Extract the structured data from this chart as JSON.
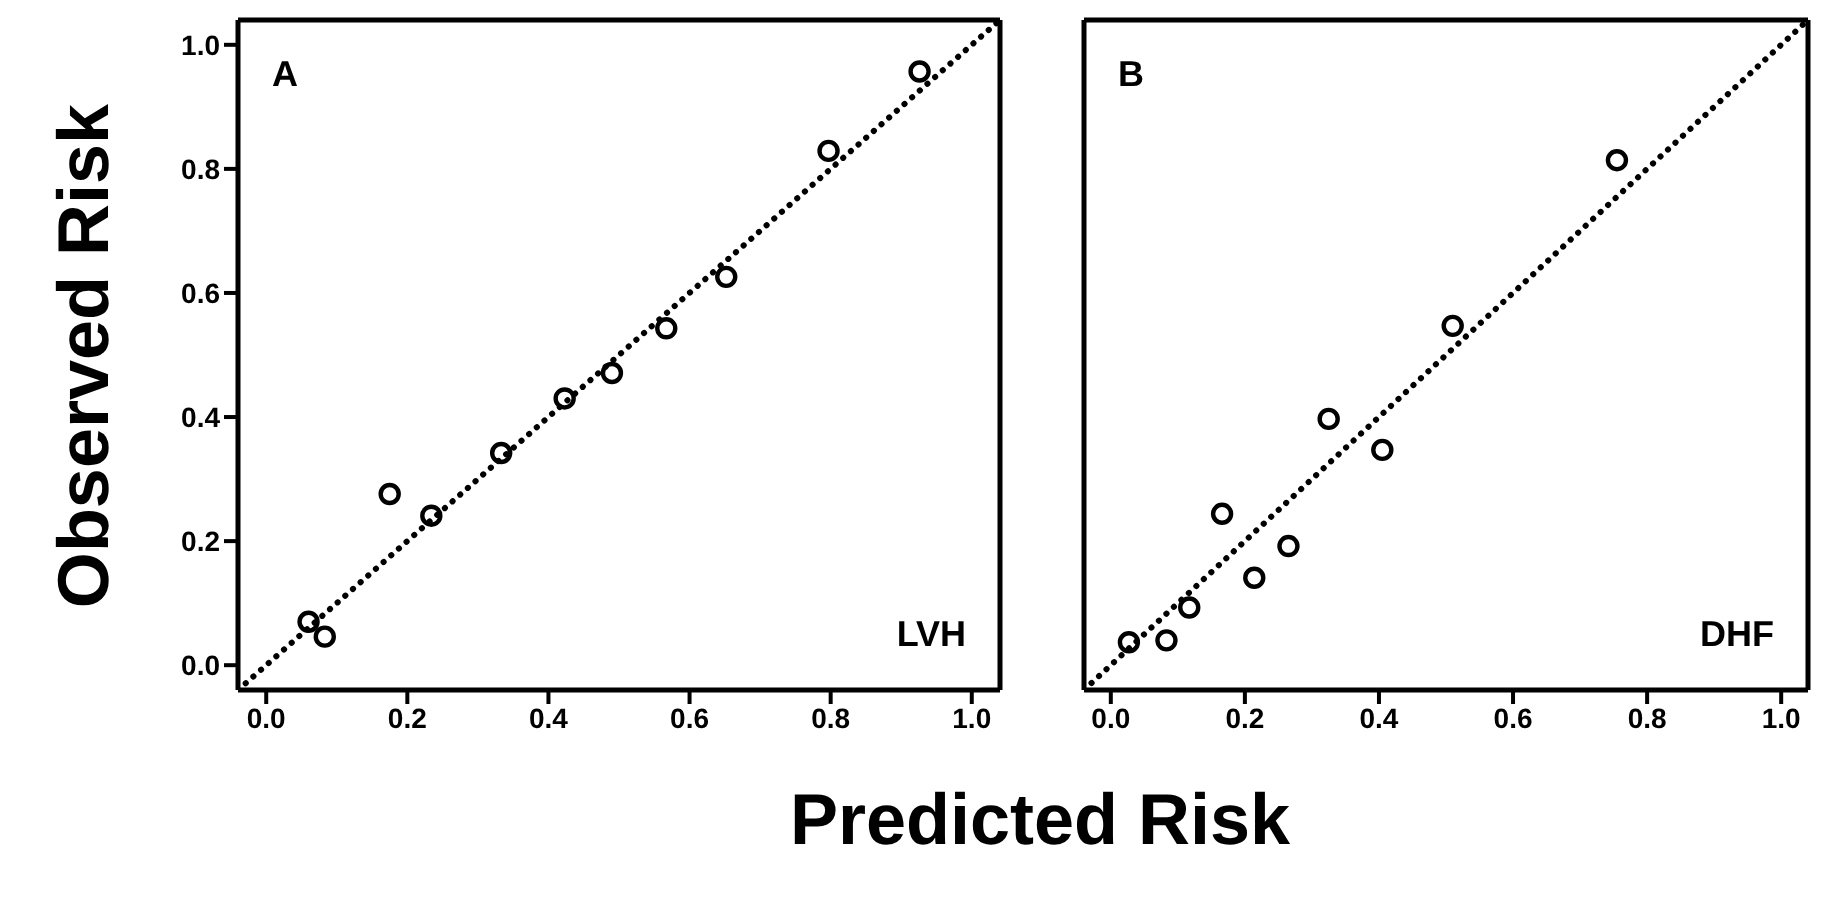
{
  "chart_data": [
    {
      "type": "scatter",
      "ylabel": "Observed Risk",
      "xlabel": "Predicted Risk",
      "annotations": [
        "A",
        "LVH"
      ],
      "xlim": [
        -0.04,
        1.04
      ],
      "ylim": [
        -0.04,
        1.04
      ],
      "xticks": [
        {
          "value": 0,
          "label": "0.0"
        },
        {
          "value": 0.2,
          "label": "0.2"
        },
        {
          "value": 0.4,
          "label": "0.4"
        },
        {
          "value": 0.6,
          "label": "0.6"
        },
        {
          "value": 0.8,
          "label": "0.8"
        },
        {
          "value": 1,
          "label": "1.0"
        }
      ],
      "yticks": [
        {
          "value": 0,
          "label": "0.0"
        },
        {
          "value": 0.2,
          "label": "0.2"
        },
        {
          "value": 0.4,
          "label": "0.4"
        },
        {
          "value": 0.6,
          "label": "0.6"
        },
        {
          "value": 0.8,
          "label": "0.8"
        },
        {
          "value": 1,
          "label": "1.0"
        }
      ],
      "series": [
        {
          "color": "#000000",
          "marker": "circle",
          "x": [
            0.06,
            0.083,
            0.175,
            0.234,
            0.333,
            0.423,
            0.49,
            0.567,
            0.652,
            0.797,
            0.926
          ],
          "values": [
            0.07,
            0.046,
            0.276,
            0.241,
            0.342,
            0.43,
            0.471,
            0.543,
            0.626,
            0.829,
            0.957
          ]
        },
        {
          "type": "line",
          "color": "#000000",
          "line_style": "dotted",
          "x": [
            -0.04,
            1.04
          ],
          "values": [
            -0.04,
            1.04
          ]
        }
      ]
    },
    {
      "type": "scatter",
      "annotations": [
        "B",
        "DHF"
      ],
      "tick_labels": "x",
      "xlim": [
        -0.04,
        1.04
      ],
      "ylim": [
        -0.04,
        1.04
      ],
      "xticks": [
        {
          "value": 0,
          "label": "0.0"
        },
        {
          "value": 0.2,
          "label": "0.2"
        },
        {
          "value": 0.4,
          "label": "0.4"
        },
        {
          "value": 0.6,
          "label": "0.6"
        },
        {
          "value": 0.8,
          "label": "0.8"
        },
        {
          "value": 1,
          "label": "1.0"
        }
      ],
      "yticks": [
        {
          "value": 0,
          "label": null
        },
        {
          "value": 0.2,
          "label": null
        },
        {
          "value": 0.4,
          "label": null
        },
        {
          "value": 0.6,
          "label": null
        },
        {
          "value": 0.8,
          "label": null
        },
        {
          "value": 1,
          "label": null
        }
      ],
      "series": [
        {
          "color": "#000000",
          "marker": "circle",
          "x": [
            0.027,
            0.083,
            0.117,
            0.166,
            0.214,
            0.265,
            0.325,
            0.405,
            0.51,
            0.755
          ],
          "values": [
            0.037,
            0.04,
            0.093,
            0.244,
            0.141,
            0.192,
            0.397,
            0.347,
            0.547,
            0.814
          ]
        },
        {
          "type": "line",
          "color": "#000000",
          "line_style": "dotted",
          "x": [
            -0.04,
            1.04
          ],
          "values": [
            -0.04,
            1.04
          ]
        }
      ]
    }
  ]
}
